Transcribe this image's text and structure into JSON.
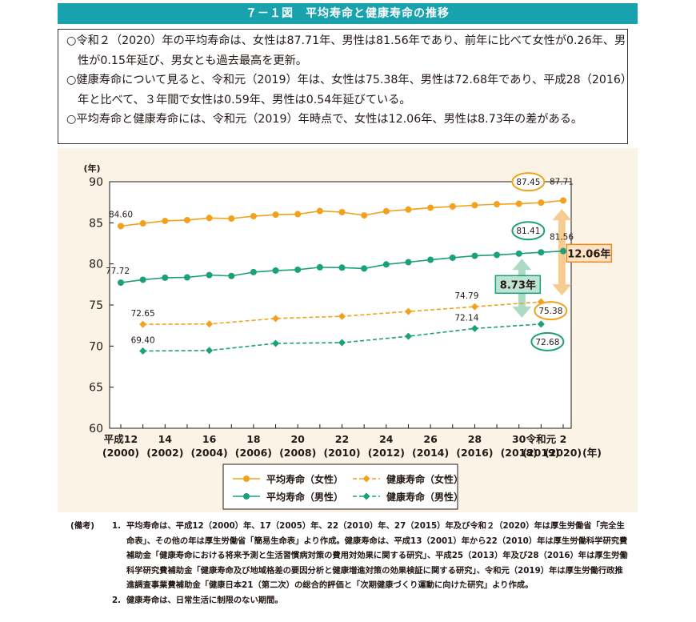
{
  "header": {
    "title": "７－１図　平均寿命と健康寿命の推移"
  },
  "summary": [
    "○令和２（2020）年の平均寿命は、女性は87.71年、男性は81.56年であり、前年に比べて女性が0.26年、男性が0.15年延び、男女とも過去最高を更新。",
    "○健康寿命について見ると、令和元（2019）年は、女性は75.38年、男性は72.68年であり、平成28（2016）年と比べて、３年間で女性は0.59年、男性は0.54年延びている。",
    "○平均寿命と健康寿命には、令和元（2019）年時点で、女性は12.06年、男性は8.73年の差がある。"
  ],
  "chart_data": {
    "type": "line",
    "ylabel": "(年)",
    "xlabel_unit": "(年)",
    "ylim": [
      60,
      90
    ],
    "yticks": [
      60,
      65,
      70,
      75,
      80,
      85,
      90
    ],
    "x": [
      2000,
      2001,
      2002,
      2003,
      2004,
      2005,
      2006,
      2007,
      2008,
      2009,
      2010,
      2011,
      2012,
      2013,
      2014,
      2015,
      2016,
      2017,
      2018,
      2019,
      2020
    ],
    "xtick_labels": [
      {
        "x": 2000,
        "era": "平成12",
        "year": "(2000)"
      },
      {
        "x": 2002,
        "era": "14",
        "year": "(2002)"
      },
      {
        "x": 2004,
        "era": "16",
        "year": "(2004)"
      },
      {
        "x": 2006,
        "era": "18",
        "year": "(2006)"
      },
      {
        "x": 2008,
        "era": "20",
        "year": "(2008)"
      },
      {
        "x": 2010,
        "era": "22",
        "year": "(2010)"
      },
      {
        "x": 2012,
        "era": "24",
        "year": "(2012)"
      },
      {
        "x": 2014,
        "era": "26",
        "year": "(2014)"
      },
      {
        "x": 2016,
        "era": "28",
        "year": "(2016)"
      },
      {
        "x": 2018,
        "era": "30",
        "year": "(2018)"
      },
      {
        "x": 2019,
        "era": "令和元",
        "year": "(2019)"
      },
      {
        "x": 2020,
        "era": "2",
        "year": "(2020)"
      }
    ],
    "series": [
      {
        "name": "平均寿命（女性）",
        "color": "#f2a11d",
        "dashed": false,
        "marker": "circle",
        "x": [
          2000,
          2001,
          2002,
          2003,
          2004,
          2005,
          2006,
          2007,
          2008,
          2009,
          2010,
          2011,
          2012,
          2013,
          2014,
          2015,
          2016,
          2017,
          2018,
          2019,
          2020
        ],
        "values": [
          84.6,
          84.93,
          85.23,
          85.33,
          85.59,
          85.52,
          85.81,
          85.99,
          86.05,
          86.44,
          86.3,
          85.9,
          86.41,
          86.61,
          86.83,
          86.99,
          87.14,
          87.26,
          87.32,
          87.45,
          87.71
        ]
      },
      {
        "name": "平均寿命（男性）",
        "color": "#1aa07a",
        "dashed": false,
        "marker": "circle",
        "x": [
          2000,
          2001,
          2002,
          2003,
          2004,
          2005,
          2006,
          2007,
          2008,
          2009,
          2010,
          2011,
          2012,
          2013,
          2014,
          2015,
          2016,
          2017,
          2018,
          2019,
          2020
        ],
        "values": [
          77.72,
          78.07,
          78.32,
          78.36,
          78.64,
          78.53,
          79.0,
          79.19,
          79.29,
          79.59,
          79.55,
          79.44,
          79.94,
          80.21,
          80.5,
          80.75,
          80.98,
          81.09,
          81.25,
          81.41,
          81.56
        ]
      },
      {
        "name": "健康寿命（女性）",
        "color": "#f2a11d",
        "dashed": true,
        "marker": "diamond",
        "x": [
          2001,
          2004,
          2007,
          2010,
          2013,
          2016,
          2019
        ],
        "values": [
          72.65,
          72.69,
          73.36,
          73.62,
          74.21,
          74.79,
          75.38
        ]
      },
      {
        "name": "健康寿命（男性）",
        "color": "#1aa07a",
        "dashed": true,
        "marker": "diamond",
        "x": [
          2001,
          2004,
          2007,
          2010,
          2013,
          2016,
          2019
        ],
        "values": [
          69.4,
          69.47,
          70.33,
          70.42,
          71.19,
          72.14,
          72.68
        ]
      }
    ],
    "data_labels": [
      {
        "series": 0,
        "x": 2000,
        "text": "84.60",
        "circled": false
      },
      {
        "series": 0,
        "x": 2019,
        "text": "87.45",
        "circled": true
      },
      {
        "series": 0,
        "x": 2020,
        "text": "87.71",
        "circled": false
      },
      {
        "series": 1,
        "x": 2000,
        "text": "77.72",
        "circled": false
      },
      {
        "series": 1,
        "x": 2019,
        "text": "81.41",
        "circled": true
      },
      {
        "series": 1,
        "x": 2020,
        "text": "81.56",
        "circled": false
      },
      {
        "series": 2,
        "x": 2001,
        "text": "72.65",
        "circled": false
      },
      {
        "series": 2,
        "x": 2016,
        "text": "74.79",
        "circled": false
      },
      {
        "series": 2,
        "x": 2019,
        "text": "75.38",
        "circled": true
      },
      {
        "series": 3,
        "x": 2001,
        "text": "69.40",
        "circled": false
      },
      {
        "series": 3,
        "x": 2016,
        "text": "72.14",
        "circled": false
      },
      {
        "series": 3,
        "x": 2019,
        "text": "72.68",
        "circled": true
      }
    ],
    "gap_annotations": [
      {
        "label": "12.06年",
        "from": 75.38,
        "to": 87.45,
        "x": 2019,
        "color": "#f6c98a",
        "box_border": "#e8891a",
        "box_fill": "#fde3c3"
      },
      {
        "label": "8.73年",
        "from": 72.68,
        "to": 81.41,
        "x": 2019,
        "color": "#a8d8c2",
        "box_border": "#1aa07a",
        "box_fill": "#bfe3d2"
      }
    ],
    "legend": [
      {
        "label": "平均寿命（女性）",
        "color": "#f2a11d",
        "dashed": false,
        "marker": "circle"
      },
      {
        "label": "健康寿命（女性）",
        "color": "#f2a11d",
        "dashed": true,
        "marker": "diamond"
      },
      {
        "label": "平均寿命（男性）",
        "color": "#1aa07a",
        "dashed": false,
        "marker": "circle"
      },
      {
        "label": "健康寿命（男性）",
        "color": "#1aa07a",
        "dashed": true,
        "marker": "diamond"
      }
    ]
  },
  "notes": {
    "head": "(備考)",
    "items": [
      {
        "num": "1.",
        "text": "平均寿命は、平成12（2000）年、17（2005）年、22（2010）年、27（2015）年及び令和２（2020）年は厚生労働省「完全生命表」、その他の年は厚生労働省「簡易生命表」より作成。健康寿命は、平成13（2001）年から22（2010）年は厚生労働科学研究費補助金「健康寿命における将来予測と生活習慣病対策の費用対効果に関する研究」、平成25（2013）年及び28（2016）年は厚生労働科学研究費補助金「健康寿命及び地域格差の要因分析と健康増進対策の効果検証に関する研究」、令和元（2019）年は厚生労働行政推進調査事業費補助金「健康日本21（第二次）の総合的評価と「次期健康づくり運動に向けた研究」より作成。"
      },
      {
        "num": "2.",
        "text": "健康寿命は、日常生活に制限のない期間。"
      }
    ]
  }
}
